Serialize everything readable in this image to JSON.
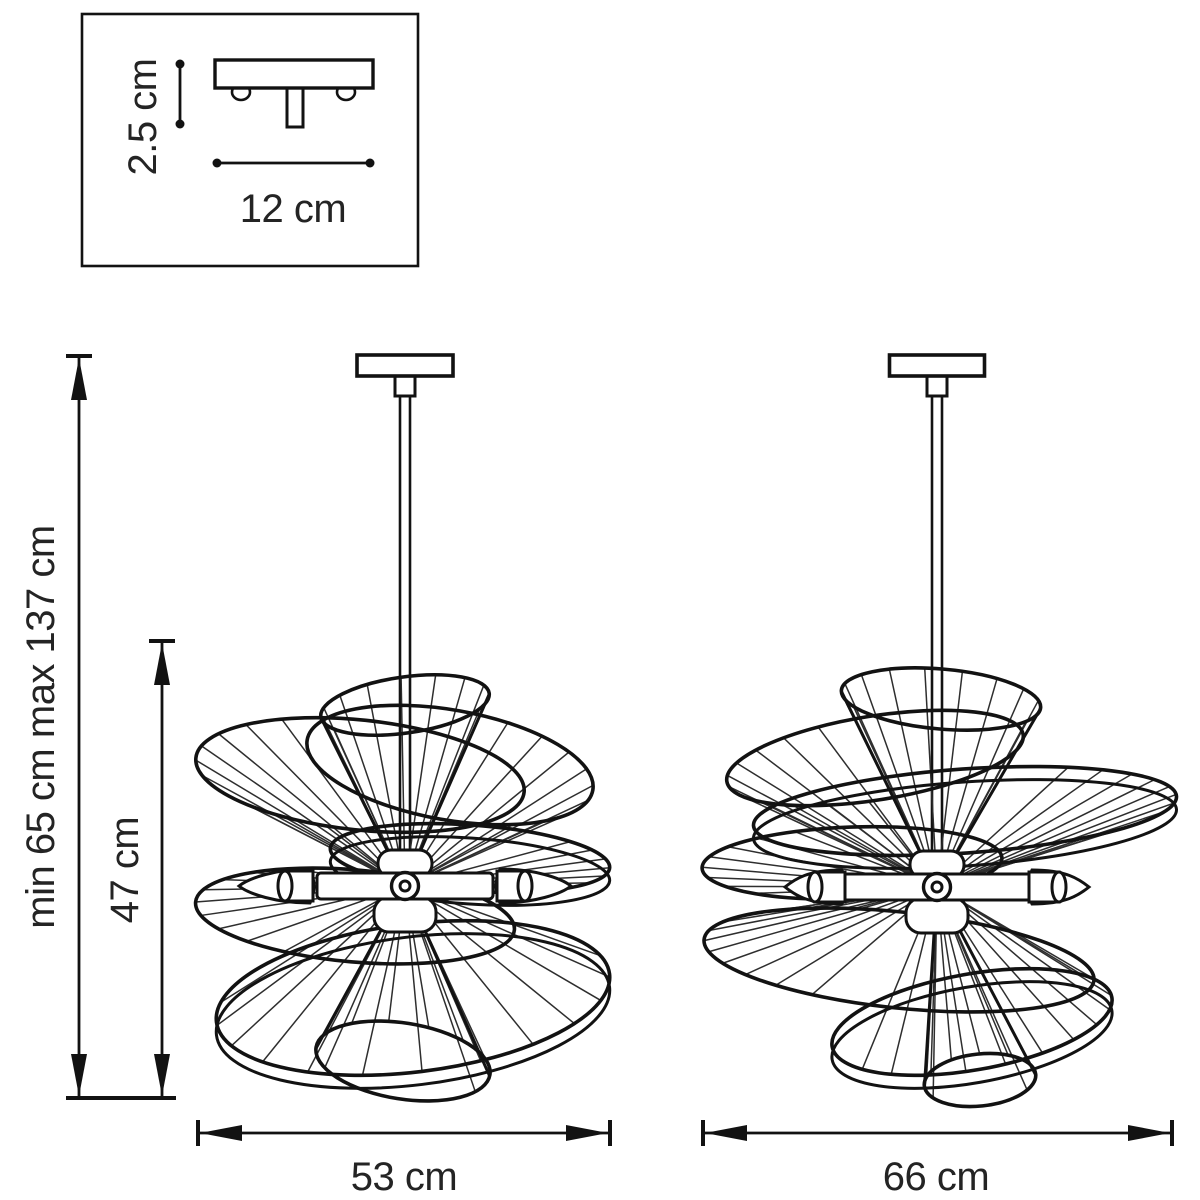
{
  "colors": {
    "line": "#121212",
    "thin_line": "#2e2e2e",
    "text": "#242424",
    "background": "#ffffff"
  },
  "canopy_detail": {
    "height_label": "2.5 cm",
    "width_label": "12 cm"
  },
  "height_dimension": {
    "label": "min 65 cm max 137 cm"
  },
  "shade_height_dimension": {
    "label": "47 cm"
  },
  "lamp_small": {
    "width_label": "53 cm",
    "bulbs_visible": 2
  },
  "lamp_large": {
    "width_label": "66 cm",
    "bulbs_visible": 2
  }
}
